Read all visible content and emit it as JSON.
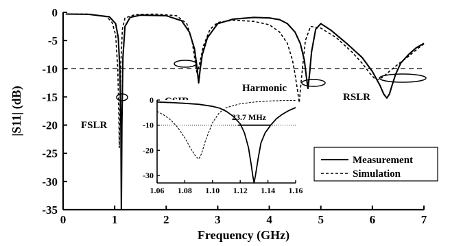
{
  "chart_data": [
    {
      "type": "line",
      "xlabel": "Frequency (GHz)",
      "ylabel": "|S11| (dB)",
      "xlim": [
        0,
        7
      ],
      "ylim": [
        -35,
        0
      ],
      "xticks": [
        "0",
        "1",
        "2",
        "3",
        "4",
        "5",
        "6",
        "7"
      ],
      "yticks": [
        "0",
        "-5",
        "-10",
        "-15",
        "-20",
        "-25",
        "-30",
        "-35"
      ],
      "reference_line": {
        "y": -10,
        "style": "dashed"
      },
      "legend": {
        "placement": "bottom-right",
        "entries": [
          "Measurement",
          "Simulation"
        ]
      },
      "annotations": [
        "FSLR",
        "CSIR",
        "Harmonic",
        "RSLR"
      ],
      "series": [
        {
          "name": "Measurement",
          "style": "solid",
          "x": [
            0.05,
            0.5,
            0.9,
            1.02,
            1.07,
            1.1,
            1.12,
            1.13,
            1.14,
            1.16,
            1.2,
            1.3,
            1.5,
            2.0,
            2.3,
            2.45,
            2.55,
            2.6,
            2.63,
            2.66,
            2.7,
            2.8,
            3.0,
            3.3,
            3.7,
            4.0,
            4.2,
            4.35,
            4.5,
            4.6,
            4.68,
            4.72,
            4.75,
            4.78,
            4.82,
            4.9,
            5.0,
            5.2,
            5.5,
            5.8,
            6.0,
            6.15,
            6.22,
            6.28,
            6.33,
            6.38,
            6.45,
            6.55,
            6.7,
            6.85,
            7.0
          ],
          "y": [
            -0.3,
            -0.35,
            -0.8,
            -2.0,
            -4.5,
            -10.0,
            -20.0,
            -35.0,
            -20.0,
            -8.0,
            -2.5,
            -0.9,
            -0.5,
            -0.6,
            -1.5,
            -3.5,
            -6.5,
            -10.0,
            -12.5,
            -10.0,
            -7.5,
            -4.5,
            -2.0,
            -1.2,
            -0.9,
            -1.0,
            -1.3,
            -2.0,
            -3.5,
            -5.5,
            -8.5,
            -11.5,
            -13.5,
            -11.0,
            -7.0,
            -3.0,
            -2.0,
            -3.2,
            -5.5,
            -8.0,
            -10.5,
            -13.0,
            -14.5,
            -15.2,
            -14.5,
            -13.0,
            -11.0,
            -9.0,
            -7.5,
            -6.3,
            -5.5
          ]
        },
        {
          "name": "Simulation",
          "style": "dashed",
          "x": [
            0.05,
            0.5,
            0.85,
            0.95,
            1.02,
            1.06,
            1.08,
            1.09,
            1.1,
            1.12,
            1.15,
            1.2,
            1.4,
            1.8,
            2.2,
            2.4,
            2.5,
            2.55,
            2.6,
            2.65,
            2.72,
            2.85,
            3.0,
            3.3,
            3.7,
            4.0,
            4.2,
            4.35,
            4.45,
            4.5,
            4.55,
            4.58,
            4.62,
            4.7,
            4.8,
            5.0,
            5.3,
            5.6,
            5.8,
            5.95,
            6.05,
            6.1,
            6.2,
            6.35,
            6.5,
            6.7,
            6.9,
            7.0
          ],
          "y": [
            -0.3,
            -0.3,
            -0.8,
            -1.8,
            -4.0,
            -10.0,
            -18.0,
            -24.0,
            -18.0,
            -9.0,
            -3.0,
            -1.0,
            -0.4,
            -0.3,
            -0.6,
            -2.0,
            -5.0,
            -8.0,
            -11.0,
            -9.0,
            -6.0,
            -3.0,
            -1.8,
            -1.4,
            -1.6,
            -2.2,
            -3.5,
            -5.5,
            -8.5,
            -11.0,
            -14.0,
            -16.0,
            -12.0,
            -5.0,
            -2.5,
            -2.8,
            -4.5,
            -7.0,
            -9.0,
            -10.8,
            -11.8,
            -12.0,
            -11.5,
            -10.3,
            -9.2,
            -7.8,
            -6.3,
            -5.6
          ]
        }
      ]
    },
    {
      "type": "line",
      "role": "inset",
      "xlim": [
        1.06,
        1.16
      ],
      "ylim": [
        -33,
        0
      ],
      "xticks": [
        "1.06",
        "1.08",
        "1.10",
        "1.12",
        "1.14",
        "1.16"
      ],
      "yticks": [
        "0",
        "-10",
        "-20",
        "-30"
      ],
      "reference_line": {
        "y": -10,
        "style": "dotted"
      },
      "annotations": [
        "23.7 MHz"
      ],
      "bandwidth_marker": {
        "x_start": 1.1185,
        "x_end": 1.1422,
        "y": -10
      },
      "series": [
        {
          "name": "Measurement",
          "style": "solid",
          "x": [
            1.06,
            1.07,
            1.08,
            1.09,
            1.1,
            1.105,
            1.11,
            1.115,
            1.12,
            1.123,
            1.126,
            1.128,
            1.129,
            1.13,
            1.131,
            1.133,
            1.135,
            1.138,
            1.142,
            1.146,
            1.15,
            1.155,
            1.16
          ],
          "y": [
            -0.8,
            -1.0,
            -1.3,
            -1.7,
            -2.5,
            -3.2,
            -4.5,
            -6.5,
            -9.5,
            -13.0,
            -19.0,
            -26.0,
            -30.0,
            -33.0,
            -30.0,
            -23.0,
            -17.0,
            -13.0,
            -10.0,
            -7.5,
            -5.8,
            -4.2,
            -3.0
          ]
        },
        {
          "name": "Simulation",
          "style": "dashed",
          "x": [
            1.06,
            1.065,
            1.07,
            1.075,
            1.08,
            1.085,
            1.088,
            1.09,
            1.092,
            1.095,
            1.1,
            1.105,
            1.11,
            1.12,
            1.13,
            1.14,
            1.15,
            1.16
          ],
          "y": [
            -4.5,
            -6.0,
            -8.0,
            -11.0,
            -15.0,
            -20.0,
            -22.5,
            -23.5,
            -21.5,
            -16.0,
            -9.0,
            -5.0,
            -3.0,
            -1.5,
            -0.8,
            -0.4,
            -0.2,
            -0.1
          ]
        }
      ]
    }
  ]
}
